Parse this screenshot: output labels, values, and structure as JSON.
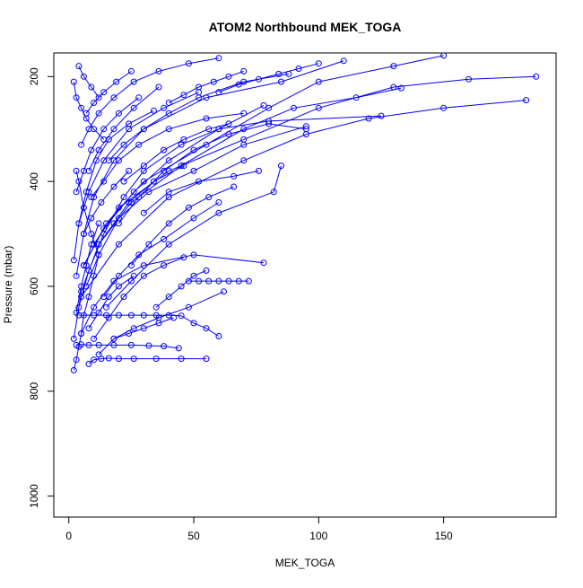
{
  "chart_data": {
    "type": "line",
    "title": "ATOM2 Northbound MEK_TOGA",
    "xlabel": "MEK_TOGA",
    "ylabel": "Pressure (mbar)",
    "xlim": [
      -6,
      195
    ],
    "ylim": [
      1040,
      155
    ],
    "y_inverted": true,
    "x_ticks": [
      0,
      50,
      100,
      150
    ],
    "y_ticks": [
      200,
      400,
      600,
      800,
      1000
    ],
    "grid": false,
    "legend": "none",
    "markers": "open-circle",
    "color": "#0000ff",
    "series": [
      {
        "x": [
          2,
          3,
          4,
          5,
          6,
          8,
          10,
          12,
          9,
          6,
          4,
          3
        ],
        "y": [
          760,
          740,
          715,
          690,
          655,
          620,
          580,
          540,
          500,
          450,
          400,
          380
        ]
      },
      {
        "x": [
          8,
          10,
          13,
          16,
          20,
          26,
          35,
          45,
          55
        ],
        "y": [
          748,
          740,
          738,
          737,
          738,
          738,
          738,
          738,
          738
        ]
      },
      {
        "x": [
          3,
          5,
          8,
          12,
          18,
          25,
          32,
          38,
          44
        ],
        "y": [
          712,
          711,
          712,
          712,
          712,
          712,
          713,
          714,
          718
        ]
      },
      {
        "x": [
          48,
          52,
          56,
          60,
          64,
          68,
          72
        ],
        "y": [
          590,
          590,
          590,
          590,
          590,
          590,
          590
        ]
      },
      {
        "x": [
          4,
          10,
          15,
          20,
          25,
          30,
          35,
          40,
          45,
          50,
          55,
          60
        ],
        "y": [
          655,
          655,
          655,
          655,
          655,
          655,
          655,
          655,
          656,
          670,
          680,
          695
        ]
      },
      {
        "x": [
          6,
          15,
          30,
          55,
          80,
          100,
          130,
          150
        ],
        "y": [
          560,
          480,
          400,
          330,
          260,
          210,
          180,
          160
        ]
      },
      {
        "x": [
          10,
          20,
          40,
          70,
          100,
          130,
          160,
          187
        ],
        "y": [
          520,
          450,
          380,
          320,
          260,
          220,
          205,
          200
        ]
      },
      {
        "x": [
          5,
          20,
          40,
          70,
          95,
          120,
          150,
          183
        ],
        "y": [
          620,
          520,
          430,
          360,
          310,
          280,
          260,
          245
        ]
      },
      {
        "x": [
          4,
          8,
          14,
          22,
          30,
          45,
          60,
          80,
          125
        ],
        "y": [
          640,
          570,
          500,
          430,
          380,
          330,
          300,
          285,
          275
        ]
      },
      {
        "x": [
          2,
          5,
          12,
          25,
          45,
          70,
          90,
          115,
          133
        ],
        "y": [
          700,
          610,
          520,
          440,
          370,
          300,
          260,
          240,
          222
        ]
      },
      {
        "x": [
          3,
          6,
          10,
          18,
          30,
          55,
          85,
          110
        ],
        "y": [
          580,
          500,
          430,
          360,
          300,
          240,
          210,
          170
        ]
      },
      {
        "x": [
          7,
          12,
          20,
          32,
          50,
          70,
          95
        ],
        "y": [
          600,
          540,
          470,
          420,
          380,
          330,
          295
        ]
      },
      {
        "x": [
          15,
          25,
          40,
          60,
          82,
          85
        ],
        "y": [
          640,
          590,
          520,
          460,
          420,
          370
        ]
      },
      {
        "x": [
          5,
          10,
          18,
          30,
          50,
          78
        ],
        "y": [
          690,
          640,
          590,
          560,
          540,
          555
        ]
      },
      {
        "x": [
          6,
          14,
          26,
          40,
          60,
          78
        ],
        "y": [
          560,
          490,
          420,
          360,
          300,
          255
        ]
      },
      {
        "x": [
          2,
          4,
          8,
          14,
          24,
          38,
          52
        ],
        "y": [
          550,
          480,
          420,
          360,
          300,
          260,
          230
        ]
      },
      {
        "x": [
          10,
          16,
          22,
          30,
          38,
          46
        ],
        "y": [
          700,
          660,
          620,
          580,
          560,
          545
        ]
      },
      {
        "x": [
          12,
          18,
          26,
          36,
          48,
          62
        ],
        "y": [
          730,
          700,
          680,
          660,
          640,
          610
        ]
      },
      {
        "x": [
          3,
          6,
          9,
          14,
          20,
          28
        ],
        "y": [
          420,
          380,
          340,
          300,
          270,
          240
        ]
      },
      {
        "x": [
          4,
          7,
          11,
          16,
          24,
          34
        ],
        "y": [
          480,
          420,
          360,
          320,
          290,
          265
        ]
      },
      {
        "x": [
          8,
          12,
          18,
          26,
          36
        ],
        "y": [
          380,
          340,
          300,
          260,
          220
        ]
      },
      {
        "x": [
          5,
          8,
          12,
          18,
          26,
          36,
          48,
          60
        ],
        "y": [
          330,
          300,
          270,
          240,
          210,
          190,
          175,
          165
        ]
      },
      {
        "x": [
          2,
          3,
          5,
          7,
          10,
          14
        ],
        "y": [
          210,
          240,
          260,
          280,
          300,
          320
        ]
      },
      {
        "x": [
          20,
          28,
          38,
          50,
          64,
          80,
          95
        ],
        "y": [
          480,
          430,
          380,
          340,
          310,
          290,
          300
        ]
      },
      {
        "x": [
          30,
          40,
          52,
          66,
          76
        ],
        "y": [
          460,
          420,
          400,
          390,
          380
        ]
      },
      {
        "x": [
          14,
          20,
          28,
          38,
          50,
          60
        ],
        "y": [
          620,
          580,
          540,
          510,
          470,
          440
        ]
      },
      {
        "x": [
          6,
          9,
          13,
          18,
          24
        ],
        "y": [
          500,
          470,
          440,
          410,
          380
        ]
      },
      {
        "x": [
          9,
          14,
          20,
          28,
          40,
          55,
          70
        ],
        "y": [
          430,
          400,
          360,
          330,
          300,
          280,
          270
        ]
      },
      {
        "x": [
          12,
          18,
          24,
          34,
          46
        ],
        "y": [
          520,
          480,
          440,
          400,
          370
        ]
      },
      {
        "x": [
          3,
          5,
          7,
          9,
          12
        ],
        "y": [
          650,
          600,
          560,
          520,
          480
        ]
      },
      {
        "x": [
          25,
          32,
          40,
          48,
          56,
          66
        ],
        "y": [
          560,
          520,
          480,
          450,
          430,
          410
        ]
      },
      {
        "x": [
          7,
          10,
          14,
          19,
          25
        ],
        "y": [
          270,
          250,
          230,
          210,
          190
        ]
      },
      {
        "x": [
          16,
          22,
          30,
          40,
          52,
          70,
          88
        ],
        "y": [
          360,
          330,
          300,
          270,
          240,
          210,
          195
        ]
      },
      {
        "x": [
          4,
          6,
          9,
          12
        ],
        "y": [
          180,
          200,
          220,
          240
        ]
      },
      {
        "x": [
          22,
          30,
          38,
          46,
          56,
          64
        ],
        "y": [
          400,
          370,
          340,
          320,
          300,
          290
        ]
      },
      {
        "x": [
          35,
          40,
          45,
          50,
          55
        ],
        "y": [
          640,
          620,
          600,
          580,
          570
        ]
      },
      {
        "x": [
          8,
          12,
          16,
          20,
          26
        ],
        "y": [
          680,
          650,
          620,
          600,
          580
        ]
      },
      {
        "x": [
          18,
          24,
          30,
          36,
          42
        ],
        "y": [
          700,
          690,
          680,
          670,
          660
        ]
      },
      {
        "x": [
          40,
          46,
          52,
          58,
          64,
          70
        ],
        "y": [
          250,
          235,
          220,
          210,
          200,
          190
        ]
      },
      {
        "x": [
          60,
          68,
          76,
          84,
          92,
          100
        ],
        "y": [
          230,
          215,
          205,
          195,
          185,
          175
        ]
      }
    ]
  }
}
